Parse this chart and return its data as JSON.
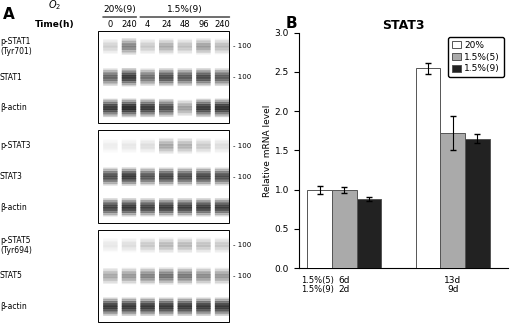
{
  "panel_B": {
    "title": "STAT3",
    "ylabel": "Relative mRNA level",
    "ylim": [
      0,
      3
    ],
    "yticks": [
      0,
      0.5,
      1.0,
      1.5,
      2.0,
      2.5,
      3.0
    ],
    "x_labels_line1": [
      "1.5%(5)",
      "6d",
      "13d"
    ],
    "x_labels_line2": [
      "1.5%(9)",
      "2d",
      "9d"
    ],
    "bar_width": 0.2,
    "series": [
      {
        "label": "20%",
        "color": "#ffffff",
        "edgecolor": "#555555",
        "values": [
          1.0,
          2.55
        ],
        "errors": [
          0.05,
          0.07
        ]
      },
      {
        "label": "1.5%(5)",
        "color": "#aaaaaa",
        "edgecolor": "#555555",
        "values": [
          1.0,
          1.72
        ],
        "errors": [
          0.04,
          0.22
        ]
      },
      {
        "label": "1.5%(9)",
        "color": "#222222",
        "edgecolor": "#555555",
        "values": [
          0.88,
          1.65
        ],
        "errors": [
          0.03,
          0.06
        ]
      }
    ],
    "group_centers": [
      0.42,
      1.3
    ],
    "legend_fontsize": 6.5,
    "tick_fontsize": 6.5,
    "label_fontsize": 6.5,
    "title_fontsize": 9
  },
  "panel_A": {
    "o2_label": "O₂",
    "time_points": [
      "0",
      "240",
      "4",
      "24",
      "48",
      "96",
      "240"
    ],
    "rows": [
      {
        "label": "p-STAT1\n(Tyr701)",
        "mw": "- 100",
        "intensities": [
          0.35,
          0.65,
          0.38,
          0.5,
          0.42,
          0.55,
          0.45
        ]
      },
      {
        "label": "STAT1",
        "mw": "- 100",
        "intensities": [
          0.75,
          0.88,
          0.72,
          0.82,
          0.78,
          0.83,
          0.78
        ]
      },
      {
        "label": "β-actin",
        "mw": null,
        "intensities": [
          0.88,
          0.92,
          0.88,
          0.82,
          0.55,
          0.88,
          0.9
        ]
      },
      {
        "label": "p-STAT3",
        "mw": "- 100",
        "intensities": [
          0.18,
          0.22,
          0.28,
          0.52,
          0.48,
          0.38,
          0.28
        ]
      },
      {
        "label": "STAT3",
        "mw": "- 100",
        "intensities": [
          0.82,
          0.88,
          0.8,
          0.84,
          0.82,
          0.84,
          0.82
        ]
      },
      {
        "label": "β-actin",
        "mw": null,
        "intensities": [
          0.85,
          0.88,
          0.85,
          0.87,
          0.86,
          0.87,
          0.86
        ]
      },
      {
        "label": "p-STAT5\n(Tyr694)",
        "mw": "- 100",
        "intensities": [
          0.22,
          0.28,
          0.38,
          0.45,
          0.45,
          0.42,
          0.38
        ]
      },
      {
        "label": "STAT5",
        "mw": "- 100",
        "intensities": [
          0.52,
          0.58,
          0.65,
          0.7,
          0.68,
          0.62,
          0.58
        ]
      },
      {
        "label": "β-actin",
        "mw": null,
        "intensities": [
          0.88,
          0.88,
          0.88,
          0.88,
          0.88,
          0.88,
          0.88
        ]
      }
    ]
  }
}
